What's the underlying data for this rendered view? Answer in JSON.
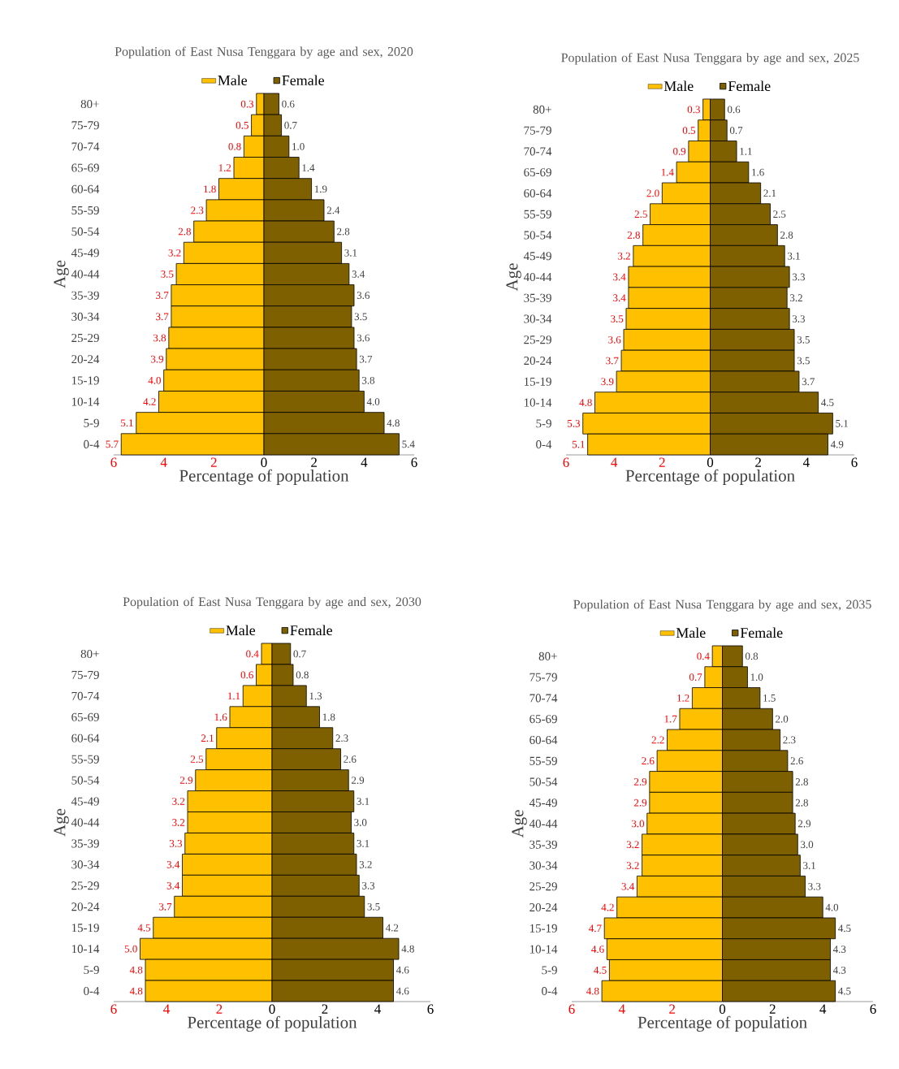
{
  "chart_data": [
    {
      "type": "bar",
      "orientation": "horizontal",
      "title": "Population of East Nusa Tenggara by age and sex, 2020",
      "xlabel": "Percentage of population",
      "ylabel": "Age",
      "legend": "top",
      "categories": [
        "80+",
        "75-79",
        "70-74",
        "65-69",
        "60-64",
        "55-59",
        "50-54",
        "45-49",
        "40-44",
        "35-39",
        "30-34",
        "25-29",
        "20-24",
        "15-19",
        "10-14",
        "5-9",
        "0-4"
      ],
      "xlim": [
        -6,
        6
      ],
      "xticks": [
        {
          "value": -6,
          "label": "6"
        },
        {
          "value": -4,
          "label": "4"
        },
        {
          "value": -2,
          "label": "2"
        },
        0,
        2,
        4,
        6
      ],
      "series": [
        {
          "name": "Male",
          "color": "#ffc000",
          "base": [
            -0.3,
            -0.5,
            -0.8,
            -1.2,
            -1.8,
            -2.3,
            -2.8,
            -3.2,
            -3.5,
            -3.7,
            -3.7,
            -3.8,
            -3.9,
            -4.0,
            -4.2,
            -5.1,
            -5.7
          ],
          "values": [
            0.3,
            0.5,
            0.8,
            1.2,
            1.8,
            2.3,
            2.8,
            3.2,
            3.5,
            3.7,
            3.7,
            3.8,
            3.9,
            4.0,
            4.2,
            5.1,
            5.7
          ],
          "value_labels": [
            "0.3",
            "0.5",
            "0.8",
            "1.2",
            "1.8",
            "2.3",
            "2.8",
            "3.2",
            "3.5",
            "3.7",
            "3.7",
            "3.8",
            "3.9",
            "4.0",
            "4.2",
            "5.1",
            "5.7"
          ]
        },
        {
          "name": "Female",
          "color": "#7f6000",
          "values": [
            0.6,
            0.7,
            1.0,
            1.4,
            1.9,
            2.4,
            2.8,
            3.1,
            3.4,
            3.6,
            3.5,
            3.6,
            3.7,
            3.8,
            4.0,
            4.8,
            5.4
          ],
          "value_labels": [
            "0.6",
            "0.7",
            "1.0",
            "1.4",
            "1.9",
            "2.4",
            "2.8",
            "3.1",
            "3.4",
            "3.6",
            "3.5",
            "3.6",
            "3.7",
            "3.8",
            "4.0",
            "4.8",
            "5.4"
          ]
        }
      ]
    },
    {
      "type": "bar",
      "orientation": "horizontal",
      "title": "Population of East Nusa Tenggara by age and sex, 2025",
      "xlabel": "Percentage of population",
      "ylabel": "Age",
      "legend": "top",
      "categories": [
        "80+",
        "75-79",
        "70-74",
        "65-69",
        "60-64",
        "55-59",
        "50-54",
        "45-49",
        "40-44",
        "35-39",
        "30-34",
        "25-29",
        "20-24",
        "15-19",
        "10-14",
        "5-9",
        "0-4"
      ],
      "xlim": [
        -6,
        6
      ],
      "xticks": [
        {
          "value": -6,
          "label": "6"
        },
        {
          "value": -4,
          "label": "4"
        },
        {
          "value": -2,
          "label": "2"
        },
        0,
        2,
        4,
        6
      ],
      "series": [
        {
          "name": "Male",
          "color": "#ffc000",
          "base": [
            -0.3,
            -0.5,
            -0.9,
            -1.4,
            -2.0,
            -2.5,
            -2.8,
            -3.2,
            -3.4,
            -3.4,
            -3.5,
            -3.6,
            -3.7,
            -3.9,
            -4.8,
            -5.3,
            -5.1
          ],
          "values": [
            0.3,
            0.5,
            0.9,
            1.4,
            2.0,
            2.5,
            2.8,
            3.2,
            3.4,
            3.4,
            3.5,
            3.6,
            3.7,
            3.9,
            4.8,
            5.3,
            5.1
          ],
          "value_labels": [
            "0.3",
            "0.5",
            "0.9",
            "1.4",
            "2.0",
            "2.5",
            "2.8",
            "3.2",
            "3.4",
            "3.4",
            "3.5",
            "3.6",
            "3.7",
            "3.9",
            "4.8",
            "5.3",
            "5.1"
          ]
        },
        {
          "name": "Female",
          "color": "#7f6000",
          "values": [
            0.6,
            0.7,
            1.1,
            1.6,
            2.1,
            2.5,
            2.8,
            3.1,
            3.3,
            3.2,
            3.3,
            3.5,
            3.5,
            3.7,
            4.5,
            5.1,
            4.9
          ],
          "value_labels": [
            "0.6",
            "0.7",
            "1.1",
            "1.6",
            "2.1",
            "2.5",
            "2.8",
            "3.1",
            "3.3",
            "3.2",
            "3.3",
            "3.5",
            "3.5",
            "3.7",
            "4.5",
            "5.1",
            "4.9"
          ]
        }
      ]
    },
    {
      "type": "bar",
      "orientation": "horizontal",
      "title": "Population of East Nusa Tenggara by age and sex, 2030",
      "xlabel": "Percentage of population",
      "ylabel": "Age",
      "legend": "top",
      "categories": [
        "80+",
        "75-79",
        "70-74",
        "65-69",
        "60-64",
        "55-59",
        "50-54",
        "45-49",
        "40-44",
        "35-39",
        "30-34",
        "25-29",
        "20-24",
        "15-19",
        "10-14",
        "5-9",
        "0-4"
      ],
      "xlim": [
        -6,
        6
      ],
      "xticks": [
        {
          "value": -6,
          "label": "6"
        },
        {
          "value": -4,
          "label": "4"
        },
        {
          "value": -2,
          "label": "2"
        },
        0,
        2,
        4,
        6
      ],
      "series": [
        {
          "name": "Male",
          "color": "#ffc000",
          "base": [
            -0.4,
            -0.6,
            -1.1,
            -1.6,
            -2.1,
            -2.5,
            -2.9,
            -3.2,
            -3.2,
            -3.3,
            -3.4,
            -3.4,
            -3.7,
            -4.5,
            -5.0,
            -4.8,
            -4.8
          ],
          "values": [
            0.4,
            0.6,
            1.1,
            1.6,
            2.1,
            2.5,
            2.9,
            3.2,
            3.2,
            3.3,
            3.4,
            3.4,
            3.7,
            4.5,
            5.0,
            4.8,
            4.8
          ],
          "value_labels": [
            "0.4",
            "0.6",
            "1.1",
            "1.6",
            "2.1",
            "2.5",
            "2.9",
            "3.2",
            "3.2",
            "3.3",
            "3.4",
            "3.4",
            "3.7",
            "4.5",
            "5.0",
            "4.8",
            "4.8"
          ]
        },
        {
          "name": "Female",
          "color": "#7f6000",
          "values": [
            0.7,
            0.8,
            1.3,
            1.8,
            2.3,
            2.6,
            2.9,
            3.1,
            3.0,
            3.1,
            3.2,
            3.3,
            3.5,
            4.2,
            4.8,
            4.6,
            4.6
          ],
          "value_labels": [
            "0.7",
            "0.8",
            "1.3",
            "1.8",
            "2.3",
            "2.6",
            "2.9",
            "3.1",
            "3.0",
            "3.1",
            "3.2",
            "3.3",
            "3.5",
            "4.2",
            "4.8",
            "4.6",
            "4.6"
          ]
        }
      ]
    },
    {
      "type": "bar",
      "orientation": "horizontal",
      "title": "Population of East Nusa Tenggara by age and sex, 2035",
      "xlabel": "Percentage of population",
      "ylabel": "Age",
      "legend": "top",
      "categories": [
        "80+",
        "75-79",
        "70-74",
        "65-69",
        "60-64",
        "55-59",
        "50-54",
        "45-49",
        "40-44",
        "35-39",
        "30-34",
        "25-29",
        "20-24",
        "15-19",
        "10-14",
        "5-9",
        "0-4"
      ],
      "xlim": [
        -6,
        6
      ],
      "xticks": [
        {
          "value": -6,
          "label": "6"
        },
        {
          "value": -4,
          "label": "4"
        },
        {
          "value": -2,
          "label": "2"
        },
        0,
        2,
        4,
        6
      ],
      "series": [
        {
          "name": "Male",
          "color": "#ffc000",
          "base": [
            -0.4,
            -0.7,
            -1.2,
            -1.7,
            -2.2,
            -2.6,
            -2.9,
            -2.9,
            -3.0,
            -3.2,
            -3.2,
            -3.4,
            -4.2,
            -4.7,
            -4.6,
            -4.5,
            -4.8
          ],
          "values": [
            0.4,
            0.7,
            1.2,
            1.7,
            2.2,
            2.6,
            2.9,
            2.9,
            3.0,
            3.2,
            3.2,
            3.4,
            4.2,
            4.7,
            4.6,
            4.5,
            4.8
          ],
          "value_labels": [
            "0.4",
            "0.7",
            "1.2",
            "1.7",
            "2.2",
            "2.6",
            "2.9",
            "2.9",
            "3.0",
            "3.2",
            "3.2",
            "3.4",
            "4.2",
            "4.7",
            "4.6",
            "4.5",
            "4.8"
          ]
        },
        {
          "name": "Female",
          "color": "#7f6000",
          "values": [
            0.8,
            1.0,
            1.5,
            2.0,
            2.3,
            2.6,
            2.8,
            2.8,
            2.9,
            3.0,
            3.1,
            3.3,
            4.0,
            4.5,
            4.3,
            4.3,
            4.5
          ],
          "value_labels": [
            "0.8",
            "1.0",
            "1.5",
            "2.0",
            "2.3",
            "2.6",
            "2.8",
            "2.8",
            "2.9",
            "3.0",
            "3.1",
            "3.3",
            "4.0",
            "4.5",
            "4.3",
            "4.3",
            "4.5"
          ]
        }
      ]
    }
  ]
}
